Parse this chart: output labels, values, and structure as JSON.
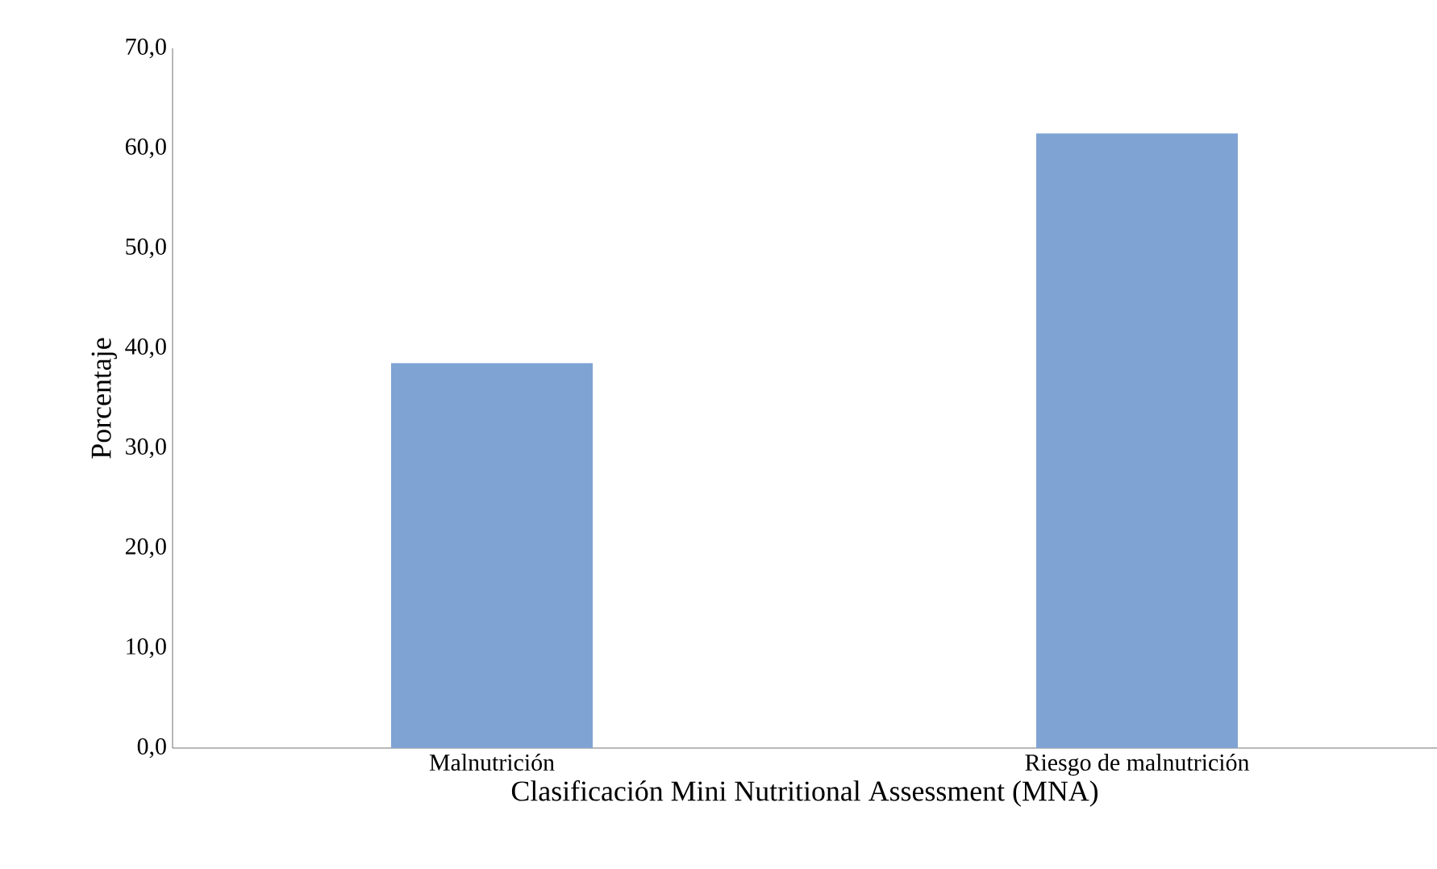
{
  "chart_data": {
    "type": "bar",
    "xlabel": "Clasificación Mini Nutritional Assessment (MNA)",
    "ylabel": "Porcentaje",
    "categories": [
      "Malnutrición",
      "Riesgo de malnutrición"
    ],
    "values": [
      38.5,
      61.5
    ],
    "color": "#7fa3d3",
    "ylim": [
      0,
      70
    ],
    "yticks": [
      {
        "value": 0,
        "label": "0,0"
      },
      {
        "value": 10,
        "label": "10,0"
      },
      {
        "value": 20,
        "label": "20,0"
      },
      {
        "value": 30,
        "label": "30,0"
      },
      {
        "value": 40,
        "label": "40,0"
      },
      {
        "value": 50,
        "label": "50,0"
      },
      {
        "value": 60,
        "label": "60,0"
      },
      {
        "value": 70,
        "label": "70,0"
      }
    ],
    "grid": false
  }
}
